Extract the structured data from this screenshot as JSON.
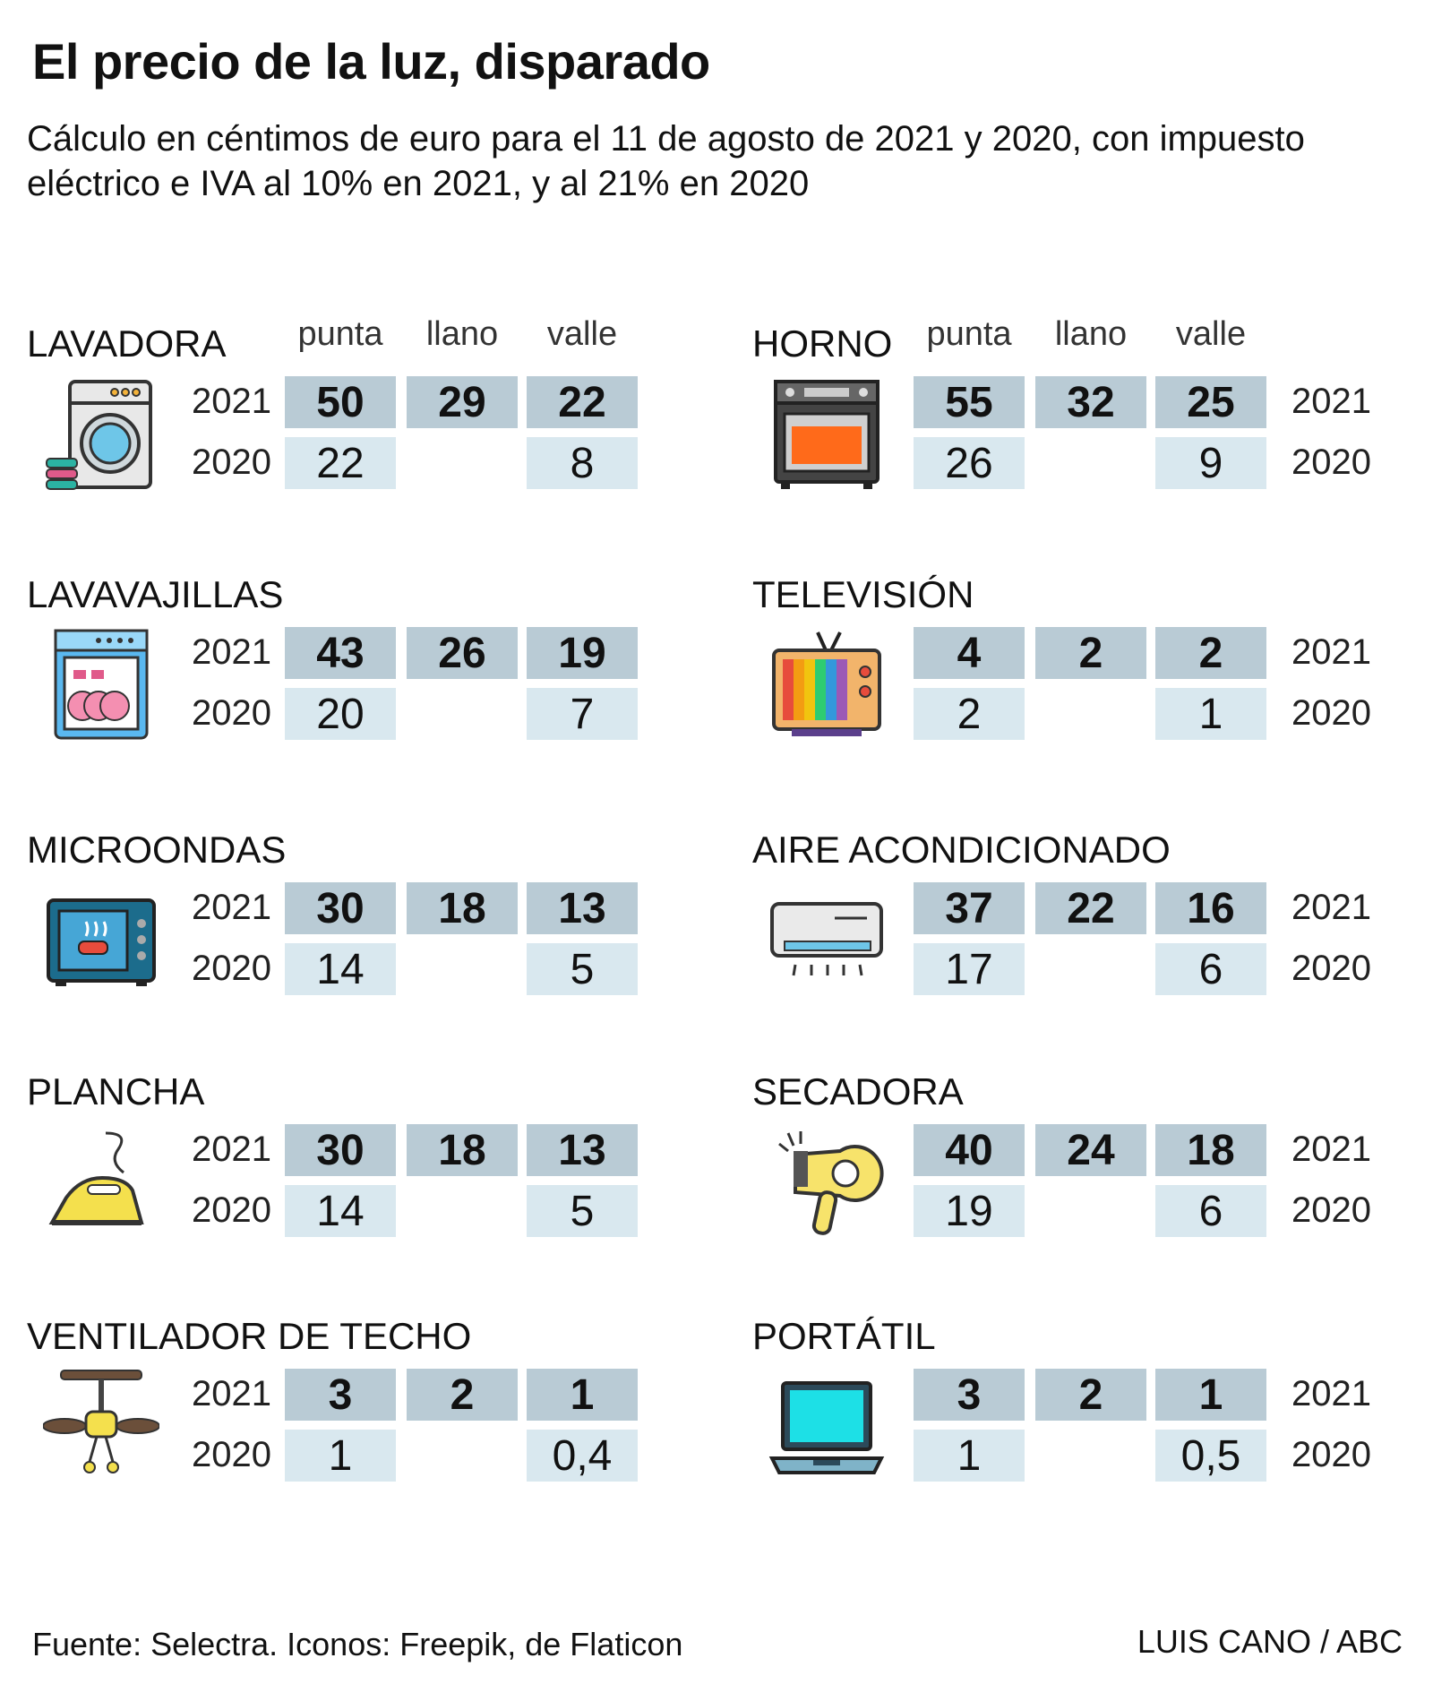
{
  "header": {
    "title": "El precio de la luz, disparado",
    "subtitle": "Cálculo en céntimos de euro para el 11 de agosto de 2021 y 2020, con impuesto eléctrico e IVA al 10% en 2021, y al 21% en 2020"
  },
  "columns": [
    "punta",
    "llano",
    "valle"
  ],
  "years": [
    "2021",
    "2020"
  ],
  "colors": {
    "row2021": "#b9cbd5",
    "row2020": "#d9e8ef"
  },
  "chart_data": {
    "type": "table",
    "unit": "céntimos de euro",
    "columns": [
      "punta",
      "llano",
      "valle"
    ],
    "panels": [
      {
        "name": "LAVADORA",
        "icon": "washing-machine-icon",
        "v2021": [
          "50",
          "29",
          "22"
        ],
        "v2020": [
          "22",
          "",
          "8"
        ]
      },
      {
        "name": "HORNO",
        "icon": "oven-icon",
        "v2021": [
          "55",
          "32",
          "25"
        ],
        "v2020": [
          "26",
          "",
          "9"
        ]
      },
      {
        "name": "LAVAVAJILLAS",
        "icon": "dishwasher-icon",
        "v2021": [
          "43",
          "26",
          "19"
        ],
        "v2020": [
          "20",
          "",
          "7"
        ]
      },
      {
        "name": "TELEVISIÓN",
        "icon": "television-icon",
        "v2021": [
          "4",
          "2",
          "2"
        ],
        "v2020": [
          "2",
          "",
          "1"
        ]
      },
      {
        "name": "MICROONDAS",
        "icon": "microwave-icon",
        "v2021": [
          "30",
          "18",
          "13"
        ],
        "v2020": [
          "14",
          "",
          "5"
        ]
      },
      {
        "name": "AIRE ACONDICIONADO",
        "icon": "air-conditioner-icon",
        "v2021": [
          "37",
          "22",
          "16"
        ],
        "v2020": [
          "17",
          "",
          "6"
        ]
      },
      {
        "name": "PLANCHA",
        "icon": "iron-icon",
        "v2021": [
          "30",
          "18",
          "13"
        ],
        "v2020": [
          "14",
          "",
          "5"
        ]
      },
      {
        "name": "SECADORA",
        "icon": "hair-dryer-icon",
        "v2021": [
          "40",
          "24",
          "18"
        ],
        "v2020": [
          "19",
          "",
          "6"
        ]
      },
      {
        "name": "VENTILADOR DE TECHO",
        "icon": "ceiling-fan-icon",
        "v2021": [
          "3",
          "2",
          "1"
        ],
        "v2020": [
          "1",
          "",
          "0,4"
        ]
      },
      {
        "name": "PORTÁTIL",
        "icon": "laptop-icon",
        "v2021": [
          "3",
          "2",
          "1"
        ],
        "v2020": [
          "1",
          "",
          "0,5"
        ]
      }
    ]
  },
  "footer": {
    "source": "Fuente: Selectra. Iconos: Freepik, de Flaticon",
    "credit": "LUIS CANO / ABC"
  }
}
